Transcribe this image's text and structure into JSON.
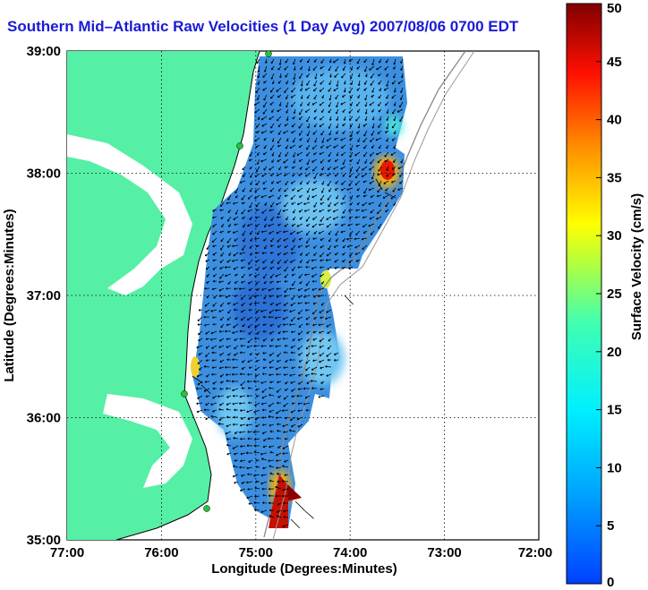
{
  "title": "Southern Mid–Atlantic Raw Velocities (1 Day Avg) 2007/08/06 0700 EDT",
  "axes": {
    "xlabel": "Longitude (Degrees:Minutes)",
    "ylabel": "Latitude (Degrees:Minutes)",
    "x_ticks": [
      "77:00",
      "76:00",
      "75:00",
      "74:00",
      "73:00",
      "72:00"
    ],
    "y_ticks": [
      "39:00",
      "38:00",
      "37:00",
      "36:00",
      "35:00"
    ],
    "x_range_deg": [
      -77,
      -72
    ],
    "y_range_deg": [
      35,
      39
    ],
    "grid": "dotted"
  },
  "colorbar": {
    "label": "Surface Velocity (cm/s)",
    "ticks": [
      "50",
      "45",
      "40",
      "35",
      "30",
      "25",
      "20",
      "15",
      "10",
      "5",
      "0"
    ],
    "range": [
      0,
      50
    ],
    "colormap": "jet"
  },
  "colors": {
    "land": "#55f0a5",
    "title": "#1a1ad6",
    "coverage": "#3c8fe0",
    "arrows": "#000000",
    "sites": "#22c43a"
  },
  "chart_data": {
    "type": "heatmap",
    "title": "Southern Mid–Atlantic Raw Velocities (1 Day Avg) 2007/08/06 0700 EDT",
    "xlabel": "Longitude (Degrees:Minutes)",
    "ylabel": "Latitude (Degrees:Minutes)",
    "colorbar_label": "Surface Velocity (cm/s)",
    "value_range": [
      0,
      50
    ],
    "typical_speed_cm_s": 8,
    "hotspots": [
      {
        "lon": -73.55,
        "lat": 38.02,
        "speed_cm_s": 40
      },
      {
        "lon": -74.8,
        "lat": 35.35,
        "speed_cm_s": 48
      },
      {
        "lon": -74.72,
        "lat": 36.85,
        "speed_cm_s": 22
      }
    ],
    "radar_sites": [
      {
        "lon": -75.1,
        "lat": 38.95
      },
      {
        "lon": -75.2,
        "lat": 38.2
      },
      {
        "lon": -75.7,
        "lat": 36.18
      },
      {
        "lon": -75.5,
        "lat": 35.27
      }
    ]
  }
}
